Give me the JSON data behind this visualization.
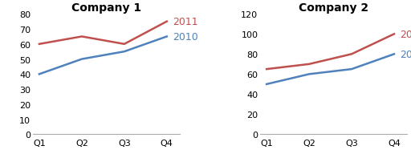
{
  "company1": {
    "title": "Company 1",
    "x_labels": [
      "Q1",
      "Q2",
      "Q3",
      "Q4"
    ],
    "series_2011": [
      60,
      65,
      60,
      75
    ],
    "series_2010": [
      40,
      50,
      55,
      65
    ],
    "ylim": [
      0,
      80
    ],
    "yticks": [
      0,
      10,
      20,
      30,
      40,
      50,
      60,
      70,
      80
    ]
  },
  "company2": {
    "title": "Company 2",
    "x_labels": [
      "Q1",
      "Q2",
      "Q3",
      "Q4"
    ],
    "series_2011": [
      65,
      70,
      80,
      100
    ],
    "series_2010": [
      50,
      60,
      65,
      80
    ],
    "ylim": [
      0,
      120
    ],
    "yticks": [
      0,
      20,
      40,
      60,
      80,
      100,
      120
    ]
  },
  "color_2011": "#c0504d",
  "color_2010": "#4f81bd",
  "legend_2011": "2011",
  "legend_2010": "2010",
  "background_color": "#ffffff",
  "title_fontsize": 10,
  "label_fontsize": 8,
  "legend_fontsize": 9,
  "line_width": 1.8,
  "spine_color": "#aaaaaa"
}
